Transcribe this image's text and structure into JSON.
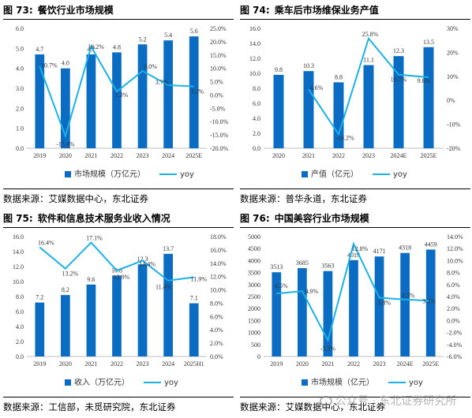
{
  "colors": {
    "bar": "#0a6cc2",
    "line": "#1ab0e8"
  },
  "watermark": {
    "text": "公众号 · 东北证券研究所",
    "icon": "wechat-icon"
  },
  "panels": [
    {
      "number": "图 73:",
      "title": "餐饮行业市场规模",
      "source": "数据来源：艾媒数据中心，东北证券",
      "chart_data": {
        "type": "bar",
        "categories": [
          "2019",
          "2020",
          "2021",
          "2022",
          "2023",
          "2024",
          "2025E"
        ],
        "series": [
          {
            "name": "市场规模（万亿元）",
            "type": "bar",
            "axis": "left",
            "values": [
              4.7,
              4.0,
              4.7,
              4.8,
              5.2,
              5.4,
              5.6
            ],
            "labels": [
              "4.7",
              "4.0",
              "4.7",
              "4.8",
              "5.2",
              "5.4",
              "5.6"
            ]
          },
          {
            "name": "yoy",
            "type": "line",
            "axis": "right",
            "values": [
              10.7,
              -15.4,
              18.2,
              1.3,
              9.0,
              3.7,
              3.2
            ],
            "labels": [
              "10.7%",
              "-15.4%",
              "18.2%",
              "1.3%",
              "9.0%",
              "3.7%",
              "3.2%"
            ]
          }
        ],
        "ylim": [
          0,
          6
        ],
        "yticks": [
          "0.0",
          "1.0",
          "2.0",
          "3.0",
          "4.0",
          "5.0",
          "6.0"
        ],
        "y2lim": [
          -20,
          25
        ],
        "y2ticks": [
          "-20.0%",
          "-15.0%",
          "-10.0%",
          "-5.0%",
          "0.0%",
          "5.0%",
          "10.0%",
          "15.0%",
          "20.0%",
          "25.0%"
        ],
        "legend": "bottom"
      }
    },
    {
      "number": "图 74:",
      "title": "乘车后市场维保业务产值",
      "source": "数据来源：普华永道，东北证券",
      "chart_data": {
        "type": "bar",
        "categories": [
          "2020",
          "2021",
          "2022",
          "2023",
          "2024E",
          "2025E"
        ],
        "series": [
          {
            "name": "产值（亿元）",
            "type": "bar",
            "axis": "left",
            "values": [
              9.8,
              10.3,
              8.8,
              11.1,
              12.3,
              13.5
            ],
            "labels": [
              "9.8",
              "10.3",
              "8.8",
              "11.1",
              "12.3",
              "13.5"
            ]
          },
          {
            "name": "yoy",
            "type": "line",
            "axis": "right",
            "values": [
              null,
              4.6,
              -14.2,
              25.8,
              10.7,
              9.6
            ],
            "labels": [
              "",
              "4.6%",
              "-14.2%",
              "25.8%",
              "10.7%",
              "9.6%"
            ]
          }
        ],
        "ylim": [
          0,
          16
        ],
        "yticks": [
          "0.0",
          "2.0",
          "4.0",
          "6.0",
          "8.0",
          "10.0",
          "12.0",
          "14.0",
          "16.0"
        ],
        "y2lim": [
          -20,
          30
        ],
        "y2ticks": [
          "-20%",
          "-10%",
          "0%",
          "10%",
          "20%",
          "30%"
        ],
        "legend": "bottom"
      }
    },
    {
      "number": "图 75:",
      "title": "软件和信息技术服务业收入情况",
      "source": "数据来源：工信部，未觅研究院，东北证券",
      "chart_data": {
        "type": "bar",
        "categories": [
          "2019",
          "2020",
          "2021",
          "2022",
          "2023",
          "2024",
          "2025H1"
        ],
        "series": [
          {
            "name": "收入（万亿元）",
            "type": "bar",
            "axis": "left",
            "values": [
              7.2,
              8.2,
              9.6,
              10.8,
              12.3,
              13.7,
              7.1
            ],
            "labels": [
              "7.2",
              "8.2",
              "9.6",
              "10.8",
              "12.3",
              "13.7",
              "7.1"
            ]
          },
          {
            "name": "yoy",
            "type": "line",
            "axis": "right",
            "values": [
              16.4,
              13.2,
              17.1,
              12.9,
              14.4,
              11.4,
              11.9
            ],
            "labels": [
              "16.4%",
              "13.2%",
              "17.1%",
              "12.9%",
              "14.4%",
              "11.4%",
              "11.9%"
            ]
          }
        ],
        "ylim": [
          0,
          16
        ],
        "yticks": [
          "0.0",
          "2.0",
          "4.0",
          "6.0",
          "8.0",
          "10.0",
          "12.0",
          "14.0",
          "16.0"
        ],
        "y2lim": [
          0,
          18
        ],
        "y2ticks": [
          "0.0%",
          "2.0%",
          "4.0%",
          "6.0%",
          "8.0%",
          "10.0%",
          "12.0%",
          "14.0%",
          "16.0%",
          "18.0%"
        ],
        "legend": "bottom"
      }
    },
    {
      "number": "图 76:",
      "title": "中国美容行业市场规模",
      "source": "数据来源：艾媒数据中心，东北证券",
      "chart_data": {
        "type": "bar",
        "categories": [
          "2019",
          "2020",
          "2021",
          "2022",
          "2023",
          "2024E",
          "2025E"
        ],
        "series": [
          {
            "name": "市场规模（亿元）",
            "type": "bar",
            "axis": "left",
            "values": [
              3513,
              3685,
              3563,
              4019,
              4171,
              4318,
              4459
            ],
            "labels": [
              "3513",
              "3685",
              "3563",
              "4019",
              "4171",
              "4318",
              "4459"
            ]
          },
          {
            "name": "yoy",
            "type": "line",
            "axis": "right",
            "values": [
              4.5,
              4.9,
              -3.3,
              12.8,
              3.8,
              3.5,
              3.3
            ],
            "labels": [
              "4.5%",
              "4.9%",
              "-3.3%",
              "12.8%",
              "3.8%",
              "3.5%",
              "3.3%"
            ]
          }
        ],
        "ylim": [
          0,
          5000
        ],
        "yticks": [
          "0",
          "500",
          "1000",
          "1500",
          "2000",
          "2500",
          "3000",
          "3500",
          "4000",
          "4500",
          "5000"
        ],
        "y2lim": [
          -6,
          14
        ],
        "y2ticks": [
          "-6.0%",
          "-4.0%",
          "-2.0%",
          "0.0%",
          "2.0%",
          "4.0%",
          "6.0%",
          "8.0%",
          "10.0%",
          "12.0%",
          "14.0%"
        ],
        "legend": "bottom"
      }
    }
  ]
}
